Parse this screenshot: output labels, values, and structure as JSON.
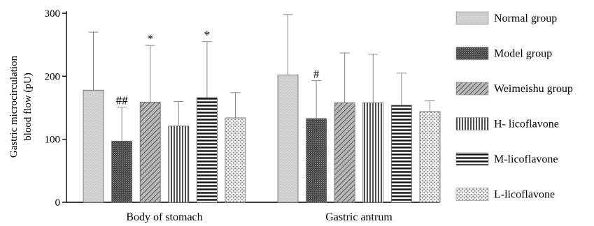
{
  "chart_data": {
    "type": "bar",
    "categories": [
      "Body of stomach",
      "Gastric antrum"
    ],
    "ylabel": "Gastric microcirculation blood flow (pU)",
    "ylabel_lines": [
      "Gastric microcirculation",
      "blood flow (pU)"
    ],
    "ylim": [
      0,
      300
    ],
    "yticks": [
      "0",
      "100",
      "200",
      "300"
    ],
    "grid": false,
    "legend_position": "right",
    "series": [
      {
        "name": "Normal group",
        "values": [
          178,
          202
        ],
        "errors": [
          92,
          96
        ],
        "annotations": [
          "",
          ""
        ],
        "pattern": "light-fill",
        "color": "#d4d4d4"
      },
      {
        "name": "Model group",
        "values": [
          97,
          133
        ],
        "errors": [
          54,
          60
        ],
        "annotations": [
          "##",
          "#"
        ],
        "pattern": "dark-fill",
        "color": "#5a5a5a"
      },
      {
        "name": "Weimeishu group",
        "values": [
          159,
          158
        ],
        "errors": [
          90,
          79
        ],
        "annotations": [
          "*",
          ""
        ],
        "pattern": "diagonal-lines",
        "color": "#8c8c8c"
      },
      {
        "name": "H- licoflavone",
        "values": [
          121,
          158
        ],
        "errors": [
          39,
          77
        ],
        "annotations": [
          "",
          ""
        ],
        "pattern": "vertical-lines",
        "color": "#333333"
      },
      {
        "name": "M-licoflavone",
        "values": [
          166,
          154
        ],
        "errors": [
          89,
          51
        ],
        "annotations": [
          "*",
          ""
        ],
        "pattern": "horizontal-lines",
        "color": "#222222"
      },
      {
        "name": "L-licoflavone",
        "values": [
          134,
          144
        ],
        "errors": [
          40,
          17
        ],
        "annotations": [
          "",
          ""
        ],
        "pattern": "dots",
        "color": "#999999"
      }
    ]
  }
}
